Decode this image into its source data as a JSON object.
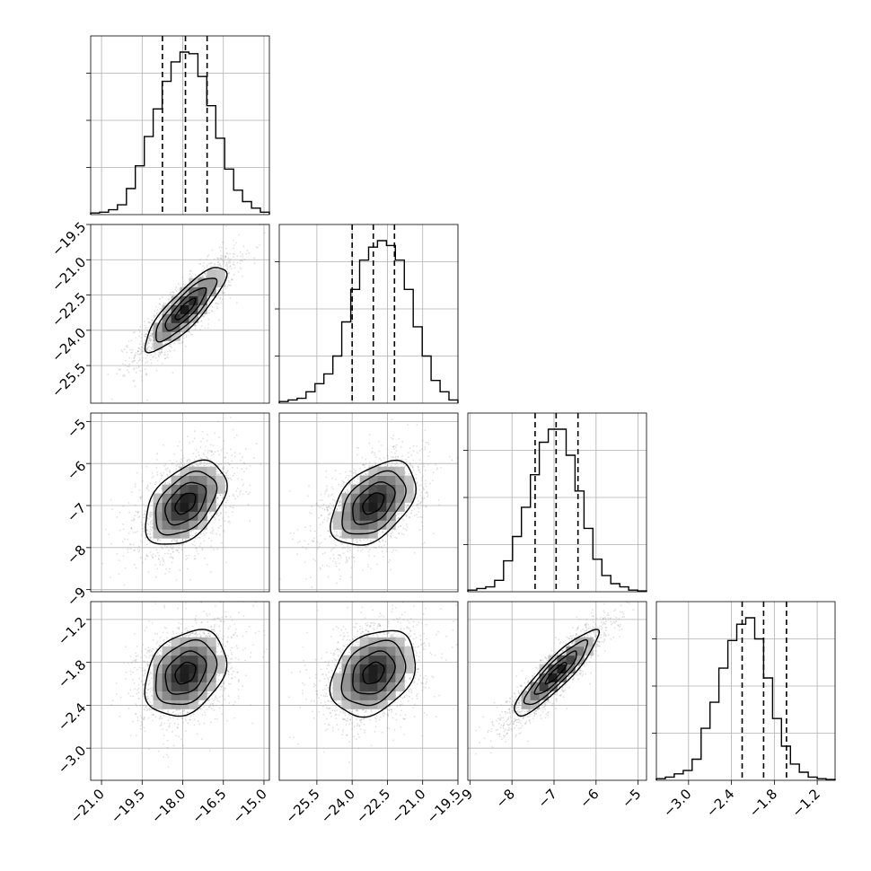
{
  "chart_data": {
    "type": "corner",
    "grid": true,
    "quantiles": [
      0.16,
      0.5,
      0.84
    ],
    "params": [
      {
        "range": [
          -21.4,
          -14.8
        ],
        "ticks": [
          -21.0,
          -19.5,
          -18.0,
          -16.5,
          -15.0
        ],
        "tick_labels": [
          "−21.0",
          "−19.5",
          "−18.0",
          "−16.5",
          "−15.0"
        ],
        "median": -17.9,
        "sigma": 0.75,
        "q_lo": -18.75,
        "q_hi": -17.1,
        "hist_edges_start": -21.4,
        "hist_bin_width": 0.33,
        "hist_counts": [
          0.01,
          0.015,
          0.03,
          0.06,
          0.16,
          0.3,
          0.48,
          0.65,
          0.82,
          0.94,
          1.0,
          0.99,
          0.85,
          0.67,
          0.47,
          0.28,
          0.15,
          0.08,
          0.04,
          0.015
        ]
      },
      {
        "range": [
          -27.1,
          -19.5
        ],
        "ticks": [
          -25.5,
          -24.0,
          -22.5,
          -21.0,
          -19.5
        ],
        "tick_labels": [
          "−25.5",
          "−24.0",
          "−22.5",
          "−21.0",
          "−19.5"
        ],
        "median": -23.1,
        "sigma": 0.9,
        "q_lo": -24.0,
        "q_hi": -22.2,
        "hist_edges_start": -27.1,
        "hist_bin_width": 0.38,
        "hist_counts": [
          0.01,
          0.02,
          0.03,
          0.07,
          0.12,
          0.18,
          0.29,
          0.5,
          0.7,
          0.88,
          0.96,
          1.0,
          0.97,
          0.88,
          0.7,
          0.47,
          0.29,
          0.14,
          0.07,
          0.02
        ]
      },
      {
        "range": [
          -9.05,
          -4.8
        ],
        "ticks": [
          -9,
          -8,
          -7,
          -6,
          -5
        ],
        "tick_labels": [
          "−9",
          "−8",
          "−7",
          "−6",
          "−5"
        ],
        "median": -6.95,
        "sigma": 0.5,
        "q_lo": -7.45,
        "q_hi": -6.43,
        "hist_edges_start": -9.05,
        "hist_bin_width": 0.2125,
        "hist_counts": [
          0.01,
          0.02,
          0.03,
          0.07,
          0.19,
          0.34,
          0.52,
          0.72,
          0.92,
          1.0,
          1.0,
          0.84,
          0.62,
          0.39,
          0.2,
          0.1,
          0.05,
          0.03,
          0.01,
          0.005
        ]
      },
      {
        "range": [
          -3.45,
          -0.95
        ],
        "ticks": [
          -3.0,
          -2.4,
          -1.8,
          -1.2
        ],
        "tick_labels": [
          "−3.0",
          "−2.4",
          "−1.8",
          "−1.2"
        ],
        "median": -1.95,
        "sigma": 0.3,
        "q_lo": -2.25,
        "q_hi": -1.63,
        "hist_edges_start": -3.45,
        "hist_bin_width": 0.125,
        "hist_counts": [
          0.01,
          0.02,
          0.04,
          0.06,
          0.13,
          0.32,
          0.48,
          0.69,
          0.86,
          0.96,
          1.0,
          0.87,
          0.63,
          0.38,
          0.21,
          0.1,
          0.05,
          0.02,
          0.01,
          0.005
        ]
      }
    ],
    "correlations": {
      "1-0": 0.85,
      "2-0": 0.45,
      "2-1": 0.45,
      "3-0": 0.3,
      "3-1": 0.3,
      "3-2": 0.9
    },
    "contour_levels_sigma": [
      0.5,
      1.0,
      1.5,
      2.0
    ]
  }
}
